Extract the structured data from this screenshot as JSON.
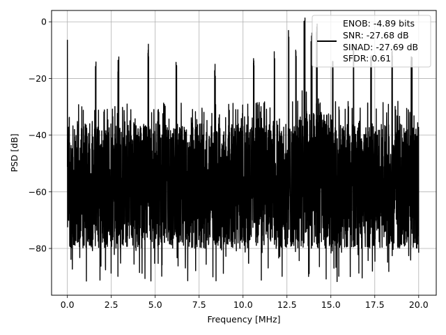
{
  "chart_data": {
    "type": "line",
    "xlabel": "Frequency [MHz]",
    "ylabel": "PSD [dB]",
    "xlim": [
      -0.9,
      21.0
    ],
    "ylim": [
      -96.5,
      4.0
    ],
    "xticks": [
      0.0,
      2.5,
      5.0,
      7.5,
      10.0,
      12.5,
      15.0,
      17.5,
      20.0
    ],
    "xtick_labels": [
      "0.0",
      "2.5",
      "5.0",
      "7.5",
      "10.0",
      "12.5",
      "15.0",
      "17.5",
      "20.0"
    ],
    "yticks": [
      0,
      -20,
      -40,
      -60,
      -80
    ],
    "ytick_labels": [
      "0",
      "−20",
      "−40",
      "−60",
      "−80"
    ],
    "grid": true,
    "legend_location": "upper right",
    "legend_lines": [
      "ENOB: -4.89 bits",
      "SNR: -27.68 dB",
      "SINAD: -27.69 dB",
      "SFDR: 0.61"
    ],
    "line_color": "#000000",
    "series": [
      {
        "x_range": [
          0.0,
          20.0
        ],
        "noise_envelope_upper_db": -36,
        "noise_envelope_lower_db": -80,
        "noise_floor_min_db": -92,
        "dc_peak": {
          "x": 0.0,
          "y": -6.5
        },
        "peaks": [
          {
            "x": 1.6,
            "y": -16
          },
          {
            "x": 2.9,
            "y": -15
          },
          {
            "x": 4.6,
            "y": -10
          },
          {
            "x": 6.2,
            "y": -16
          },
          {
            "x": 8.4,
            "y": -17
          },
          {
            "x": 10.6,
            "y": -13
          },
          {
            "x": 11.8,
            "y": -13
          },
          {
            "x": 12.6,
            "y": -6
          },
          {
            "x": 13.0,
            "y": -10
          },
          {
            "x": 13.5,
            "y": 0
          },
          {
            "x": 13.9,
            "y": -5
          },
          {
            "x": 14.2,
            "y": -3
          },
          {
            "x": 15.1,
            "y": -15
          },
          {
            "x": 16.3,
            "y": -10
          },
          {
            "x": 17.3,
            "y": -12
          },
          {
            "x": 18.5,
            "y": -12
          },
          {
            "x": 19.6,
            "y": -14
          }
        ]
      }
    ]
  }
}
